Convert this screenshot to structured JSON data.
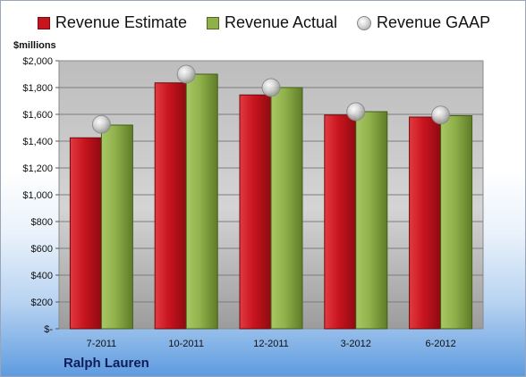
{
  "company": "Ralph Lauren",
  "chart_data": {
    "type": "bar",
    "ylabel": "$millions",
    "categories": [
      "7-2011",
      "10-2011",
      "12-2011",
      "3-2012",
      "6-2012"
    ],
    "ylim": [
      0,
      2000
    ],
    "yticks": [
      0,
      200,
      400,
      600,
      800,
      1000,
      1200,
      1400,
      1600,
      1800,
      2000
    ],
    "ytick_labels": [
      "$-",
      "$200",
      "$400",
      "$600",
      "$800",
      "$1,000",
      "$1,200",
      "$1,400",
      "$1,600",
      "$1,800",
      "$2,000"
    ],
    "grid": true,
    "legend_position": "top",
    "series": [
      {
        "name": "Revenue Estimate",
        "kind": "bar",
        "color": "#c8141e",
        "values": [
          1425,
          1835,
          1745,
          1595,
          1580
        ]
      },
      {
        "name": "Revenue Actual",
        "kind": "bar",
        "color": "#8fb04a",
        "values": [
          1520,
          1900,
          1800,
          1620,
          1590
        ]
      },
      {
        "name": "Revenue GAAP",
        "kind": "marker",
        "color": "#c0c0c0",
        "values": [
          1525,
          1900,
          1800,
          1620,
          1595
        ]
      }
    ]
  }
}
